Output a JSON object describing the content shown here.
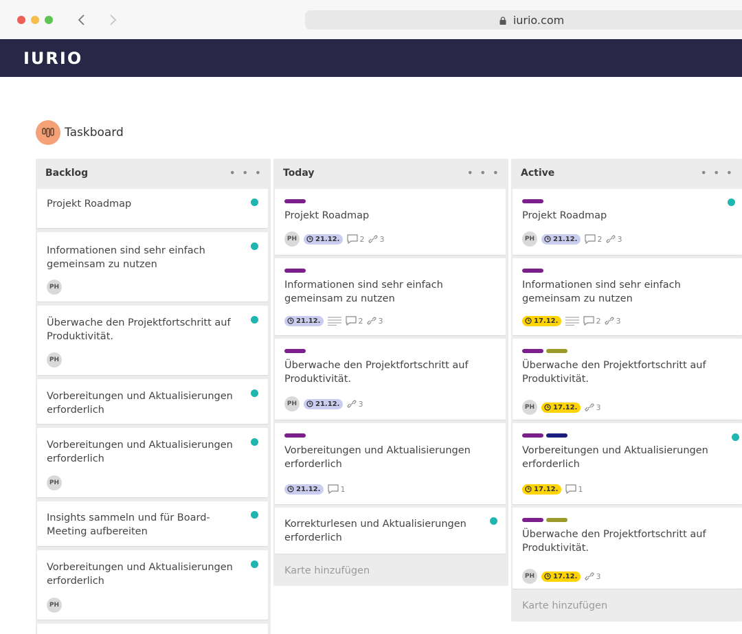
{
  "browser": {
    "url": "iurio.com",
    "traffic_light_colors": [
      "#ee5f57",
      "#f5bd4f",
      "#5fc454"
    ]
  },
  "app": {
    "logo": "IURIO"
  },
  "page": {
    "title": "Taskboard",
    "icon": "taskboard-icon"
  },
  "colors": {
    "appbar": "#282846",
    "dot": "#1fb5b0",
    "label_purple": "#7a1f8c",
    "label_olive": "#9a9a2a",
    "label_navy": "#1a1d7e",
    "due_blue": "#c9cdf0",
    "due_yellow": "#ffd400"
  },
  "columns": [
    {
      "title": "Backlog",
      "menu": "• • •",
      "cards": [
        {
          "title": "Projekt Roadmap",
          "dot": true
        },
        {
          "title": "Informationen sind sehr einfach gemeinsam zu nutzen",
          "dot": true,
          "assignee": "PH"
        },
        {
          "title": "Überwache den Projektfortschritt auf Produktivität.",
          "dot": true,
          "assignee": "PH"
        },
        {
          "title": "Vorbereitungen und Aktualisierungen erforderlich",
          "dot": true
        },
        {
          "title": "Vorbereitungen und Aktualisierungen erforderlich",
          "dot": true,
          "assignee": "PH"
        },
        {
          "title": "Insights sammeln und für Board-Meeting aufbereiten",
          "dot": true
        },
        {
          "title": "Vorbereitungen und Aktualisierungen erforderlich",
          "dot": true,
          "assignee": "PH"
        }
      ]
    },
    {
      "title": "Today",
      "menu": "• • •",
      "add_card": "Karte hinzufügen",
      "cards": [
        {
          "title": "Projekt Roadmap",
          "assignee": "PH",
          "due": "21.12.",
          "comments": "2",
          "links": "3"
        },
        {
          "title": "Informationen sind sehr einfach gemeinsam zu nutzen",
          "due": "21.12.",
          "comments": "2",
          "links": "3"
        },
        {
          "title": "Überwache den Projektfortschritt auf Produktivität.",
          "assignee": "PH",
          "due": "21.12.",
          "links": "3"
        },
        {
          "title": "Vorbereitungen und Aktualisierungen erforderlich",
          "due": "21.12.",
          "comments": "1"
        },
        {
          "title": "Korrekturlesen und Aktualisierungen erforderlich",
          "dot": true
        }
      ]
    },
    {
      "title": "Active",
      "menu": "• • •",
      "add_card": "Karte hinzufügen",
      "cards": [
        {
          "title": "Projekt Roadmap",
          "dot": true,
          "assignee": "PH",
          "due": "21.12.",
          "comments": "2",
          "links": "3"
        },
        {
          "title": "Informationen sind sehr einfach gemeinsam zu nutzen",
          "due": "17.12.",
          "comments": "2",
          "links": "3"
        },
        {
          "title": "Überwache den Projektfortschritt auf Produktivität.",
          "assignee": "PH",
          "due": "17.12.",
          "links": "3"
        },
        {
          "title": "Vorbereitungen und Aktualisierungen erforderlich",
          "dot": true,
          "due": "17.12.",
          "comments": "1"
        },
        {
          "title": "Überwache den Projektfortschritt auf Produktivität.",
          "assignee": "PH",
          "due": "17.12.",
          "links": "3"
        }
      ]
    }
  ]
}
